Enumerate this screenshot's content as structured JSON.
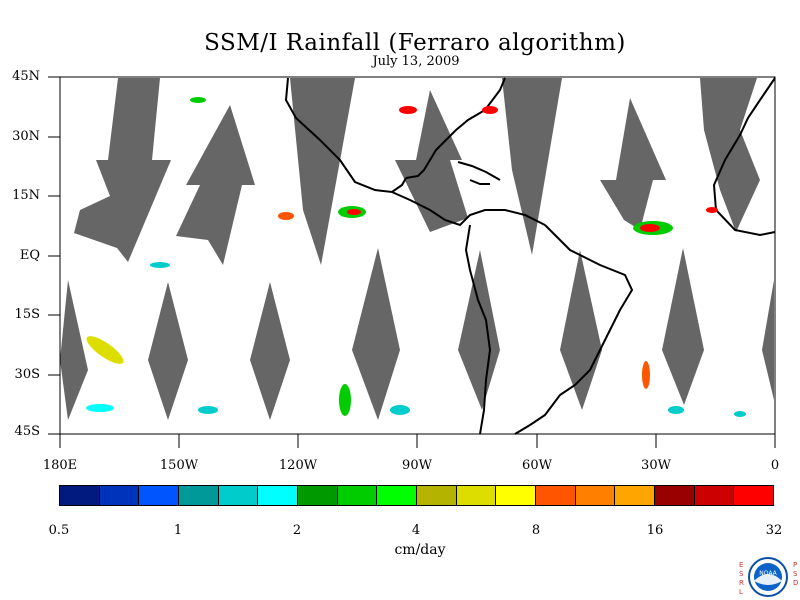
{
  "title": "SSM/I Rainfall (Ferraro algorithm)",
  "date": "July 13, 2009",
  "map": {
    "lat_ticks": [
      "45N",
      "30N",
      "15N",
      "EQ",
      "15S",
      "30S",
      "45S"
    ],
    "lon_ticks": [
      "180E",
      "150W",
      "120W",
      "90W",
      "60W",
      "30W",
      "0"
    ],
    "lat_range": [
      -45,
      45
    ],
    "lon_range": [
      -180,
      0
    ],
    "swath_gap_color": "#666666",
    "coastline_color": "#000000"
  },
  "colorbar": {
    "units": "cm/day",
    "tick_labels": [
      "0.5",
      "1",
      "2",
      "4",
      "8",
      "16",
      "32"
    ],
    "colors": [
      "#001a80",
      "#0033bb",
      "#0055ff",
      "#009999",
      "#00cccc",
      "#00ffff",
      "#009900",
      "#00cc00",
      "#00ff00",
      "#b3b300",
      "#dddd00",
      "#ffff00",
      "#ff5500",
      "#ff8000",
      "#ffa500",
      "#990000",
      "#cc0000",
      "#ff0000"
    ]
  },
  "logo": {
    "left_letters": "ESRL",
    "right_letters": "PSD",
    "center_text": "NOAA"
  }
}
